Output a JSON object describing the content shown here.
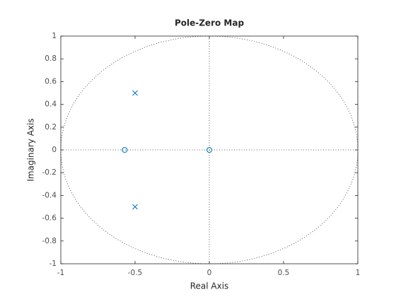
{
  "chart_data": {
    "type": "scatter",
    "title": "Pole-Zero Map",
    "xlabel": "Real Axis",
    "ylabel": "Imaginary Axis",
    "xlim": [
      -1,
      1
    ],
    "ylim": [
      -1,
      1
    ],
    "xticks": [
      -1,
      -0.5,
      0,
      0.5,
      1
    ],
    "yticks": [
      -1,
      -0.8,
      -0.6,
      -0.4,
      -0.2,
      0,
      0.2,
      0.4,
      0.6,
      0.8,
      1
    ],
    "series": [
      {
        "marker": "x",
        "color": "#0072bd",
        "x": [
          -0.5,
          -0.5
        ],
        "y": [
          0.5,
          -0.5
        ]
      },
      {
        "marker": "o",
        "color": "#0072bd",
        "x": [
          -0.57,
          0
        ],
        "y": [
          0,
          0
        ]
      }
    ]
  }
}
